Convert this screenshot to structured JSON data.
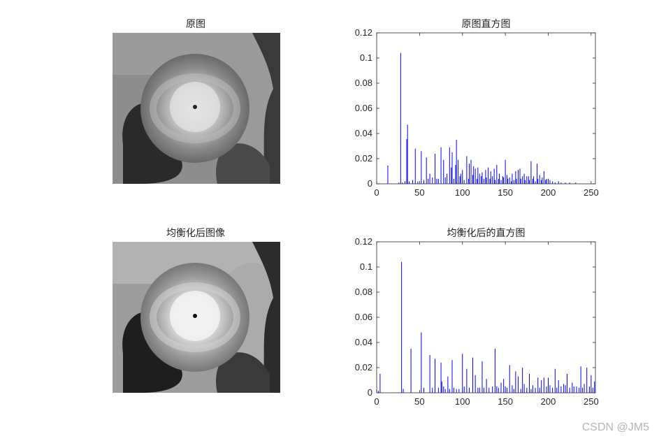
{
  "panels": {
    "original_title": "原图",
    "equalized_title": "均衡化后图像"
  },
  "colors": {
    "bar": "#0000ff",
    "axis": "#262626"
  },
  "watermark": "CSDN @JM5",
  "chart_data": [
    {
      "type": "bar",
      "title": "原图直方图",
      "xlabel": "",
      "ylabel": "",
      "xlim": [
        0,
        255
      ],
      "ylim": [
        0,
        0.12
      ],
      "xticks": [
        0,
        50,
        100,
        150,
        200,
        250
      ],
      "yticks": [
        0,
        0.02,
        0.04,
        0.06,
        0.08,
        0.1,
        0.12
      ],
      "x": [
        13,
        26,
        28,
        30,
        33,
        35,
        36,
        38,
        42,
        45,
        48,
        52,
        55,
        58,
        60,
        62,
        65,
        68,
        70,
        72,
        75,
        78,
        80,
        82,
        85,
        87,
        88,
        90,
        92,
        93,
        95,
        97,
        98,
        100,
        102,
        105,
        107,
        108,
        110,
        112,
        113,
        115,
        117,
        118,
        120,
        122,
        123,
        125,
        127,
        128,
        130,
        132,
        133,
        135,
        137,
        138,
        140,
        142,
        143,
        145,
        147,
        148,
        150,
        152,
        153,
        155,
        157,
        158,
        160,
        162,
        163,
        165,
        167,
        168,
        170,
        172,
        173,
        175,
        177,
        178,
        180,
        182,
        183,
        185,
        187,
        188,
        190,
        192,
        193,
        195,
        197,
        198,
        200,
        202,
        205,
        208,
        212,
        215,
        220,
        225,
        232
      ],
      "values": [
        0.0145,
        0.001,
        0.104,
        0.001,
        0.002,
        0.0355,
        0.047,
        0.002,
        0.003,
        0.028,
        0.002,
        0.026,
        0.003,
        0.021,
        0.004,
        0.008,
        0.005,
        0.024,
        0.004,
        0.004,
        0.029,
        0.019,
        0.005,
        0.008,
        0.029,
        0.013,
        0.025,
        0.004,
        0.015,
        0.035,
        0.019,
        0.006,
        0.008,
        0.011,
        0.003,
        0.022,
        0.004,
        0.016,
        0.019,
        0.007,
        0.014,
        0.012,
        0.004,
        0.013,
        0.008,
        0.006,
        0.009,
        0.004,
        0.011,
        0.005,
        0.013,
        0.004,
        0.01,
        0.006,
        0.012,
        0.003,
        0.015,
        0.004,
        0.008,
        0.003,
        0.006,
        0.005,
        0.019,
        0.007,
        0.004,
        0.005,
        0.002,
        0.008,
        0.003,
        0.01,
        0.004,
        0.011,
        0.012,
        0.004,
        0.006,
        0.008,
        0.003,
        0.006,
        0.006,
        0.003,
        0.018,
        0.004,
        0.006,
        0.002,
        0.016,
        0.004,
        0.007,
        0.003,
        0.005,
        0.01,
        0.003,
        0.004,
        0.004,
        0.003,
        0.002,
        0.001,
        0.002,
        0.001,
        0.001,
        0.001,
        0.001
      ]
    },
    {
      "type": "bar",
      "title": "均衡化后的直方图",
      "xlabel": "",
      "ylabel": "",
      "xlim": [
        0,
        255
      ],
      "ylim": [
        0,
        0.12
      ],
      "xticks": [
        0,
        50,
        100,
        150,
        200,
        250
      ],
      "yticks": [
        0,
        0.02,
        0.04,
        0.06,
        0.08,
        0.1,
        0.12
      ],
      "x": [
        2,
        4,
        29,
        31,
        40,
        52,
        55,
        62,
        65,
        68,
        72,
        75,
        76,
        78,
        80,
        83,
        85,
        88,
        90,
        93,
        96,
        100,
        102,
        105,
        108,
        112,
        115,
        118,
        120,
        123,
        125,
        128,
        131,
        135,
        138,
        140,
        142,
        145,
        148,
        150,
        152,
        155,
        158,
        160,
        162,
        165,
        168,
        170,
        172,
        175,
        178,
        180,
        182,
        185,
        188,
        190,
        192,
        195,
        198,
        200,
        202,
        205,
        208,
        210,
        212,
        215,
        218,
        220,
        222,
        225,
        228,
        230,
        233,
        236,
        238,
        240,
        242,
        245,
        248,
        250,
        252,
        254
      ],
      "values": [
        0.0015,
        0.015,
        0.104,
        0.003,
        0.035,
        0.048,
        0.004,
        0.03,
        0.004,
        0.027,
        0.004,
        0.024,
        0.009,
        0.005,
        0.003,
        0.013,
        0.003,
        0.026,
        0.004,
        0.003,
        0.003,
        0.031,
        0.005,
        0.019,
        0.004,
        0.028,
        0.014,
        0.004,
        0.004,
        0.025,
        0.004,
        0.011,
        0.004,
        0.005,
        0.035,
        0.005,
        0.004,
        0.008,
        0.011,
        0.005,
        0.004,
        0.022,
        0.006,
        0.003,
        0.017,
        0.013,
        0.003,
        0.02,
        0.007,
        0.004,
        0.015,
        0.003,
        0.006,
        0.004,
        0.012,
        0.004,
        0.01,
        0.012,
        0.005,
        0.012,
        0.006,
        0.004,
        0.019,
        0.004,
        0.01,
        0.005,
        0.007,
        0.006,
        0.015,
        0.004,
        0.008,
        0.005,
        0.005,
        0.004,
        0.021,
        0.004,
        0.007,
        0.02,
        0.005,
        0.014,
        0.004,
        0.009
      ]
    }
  ]
}
